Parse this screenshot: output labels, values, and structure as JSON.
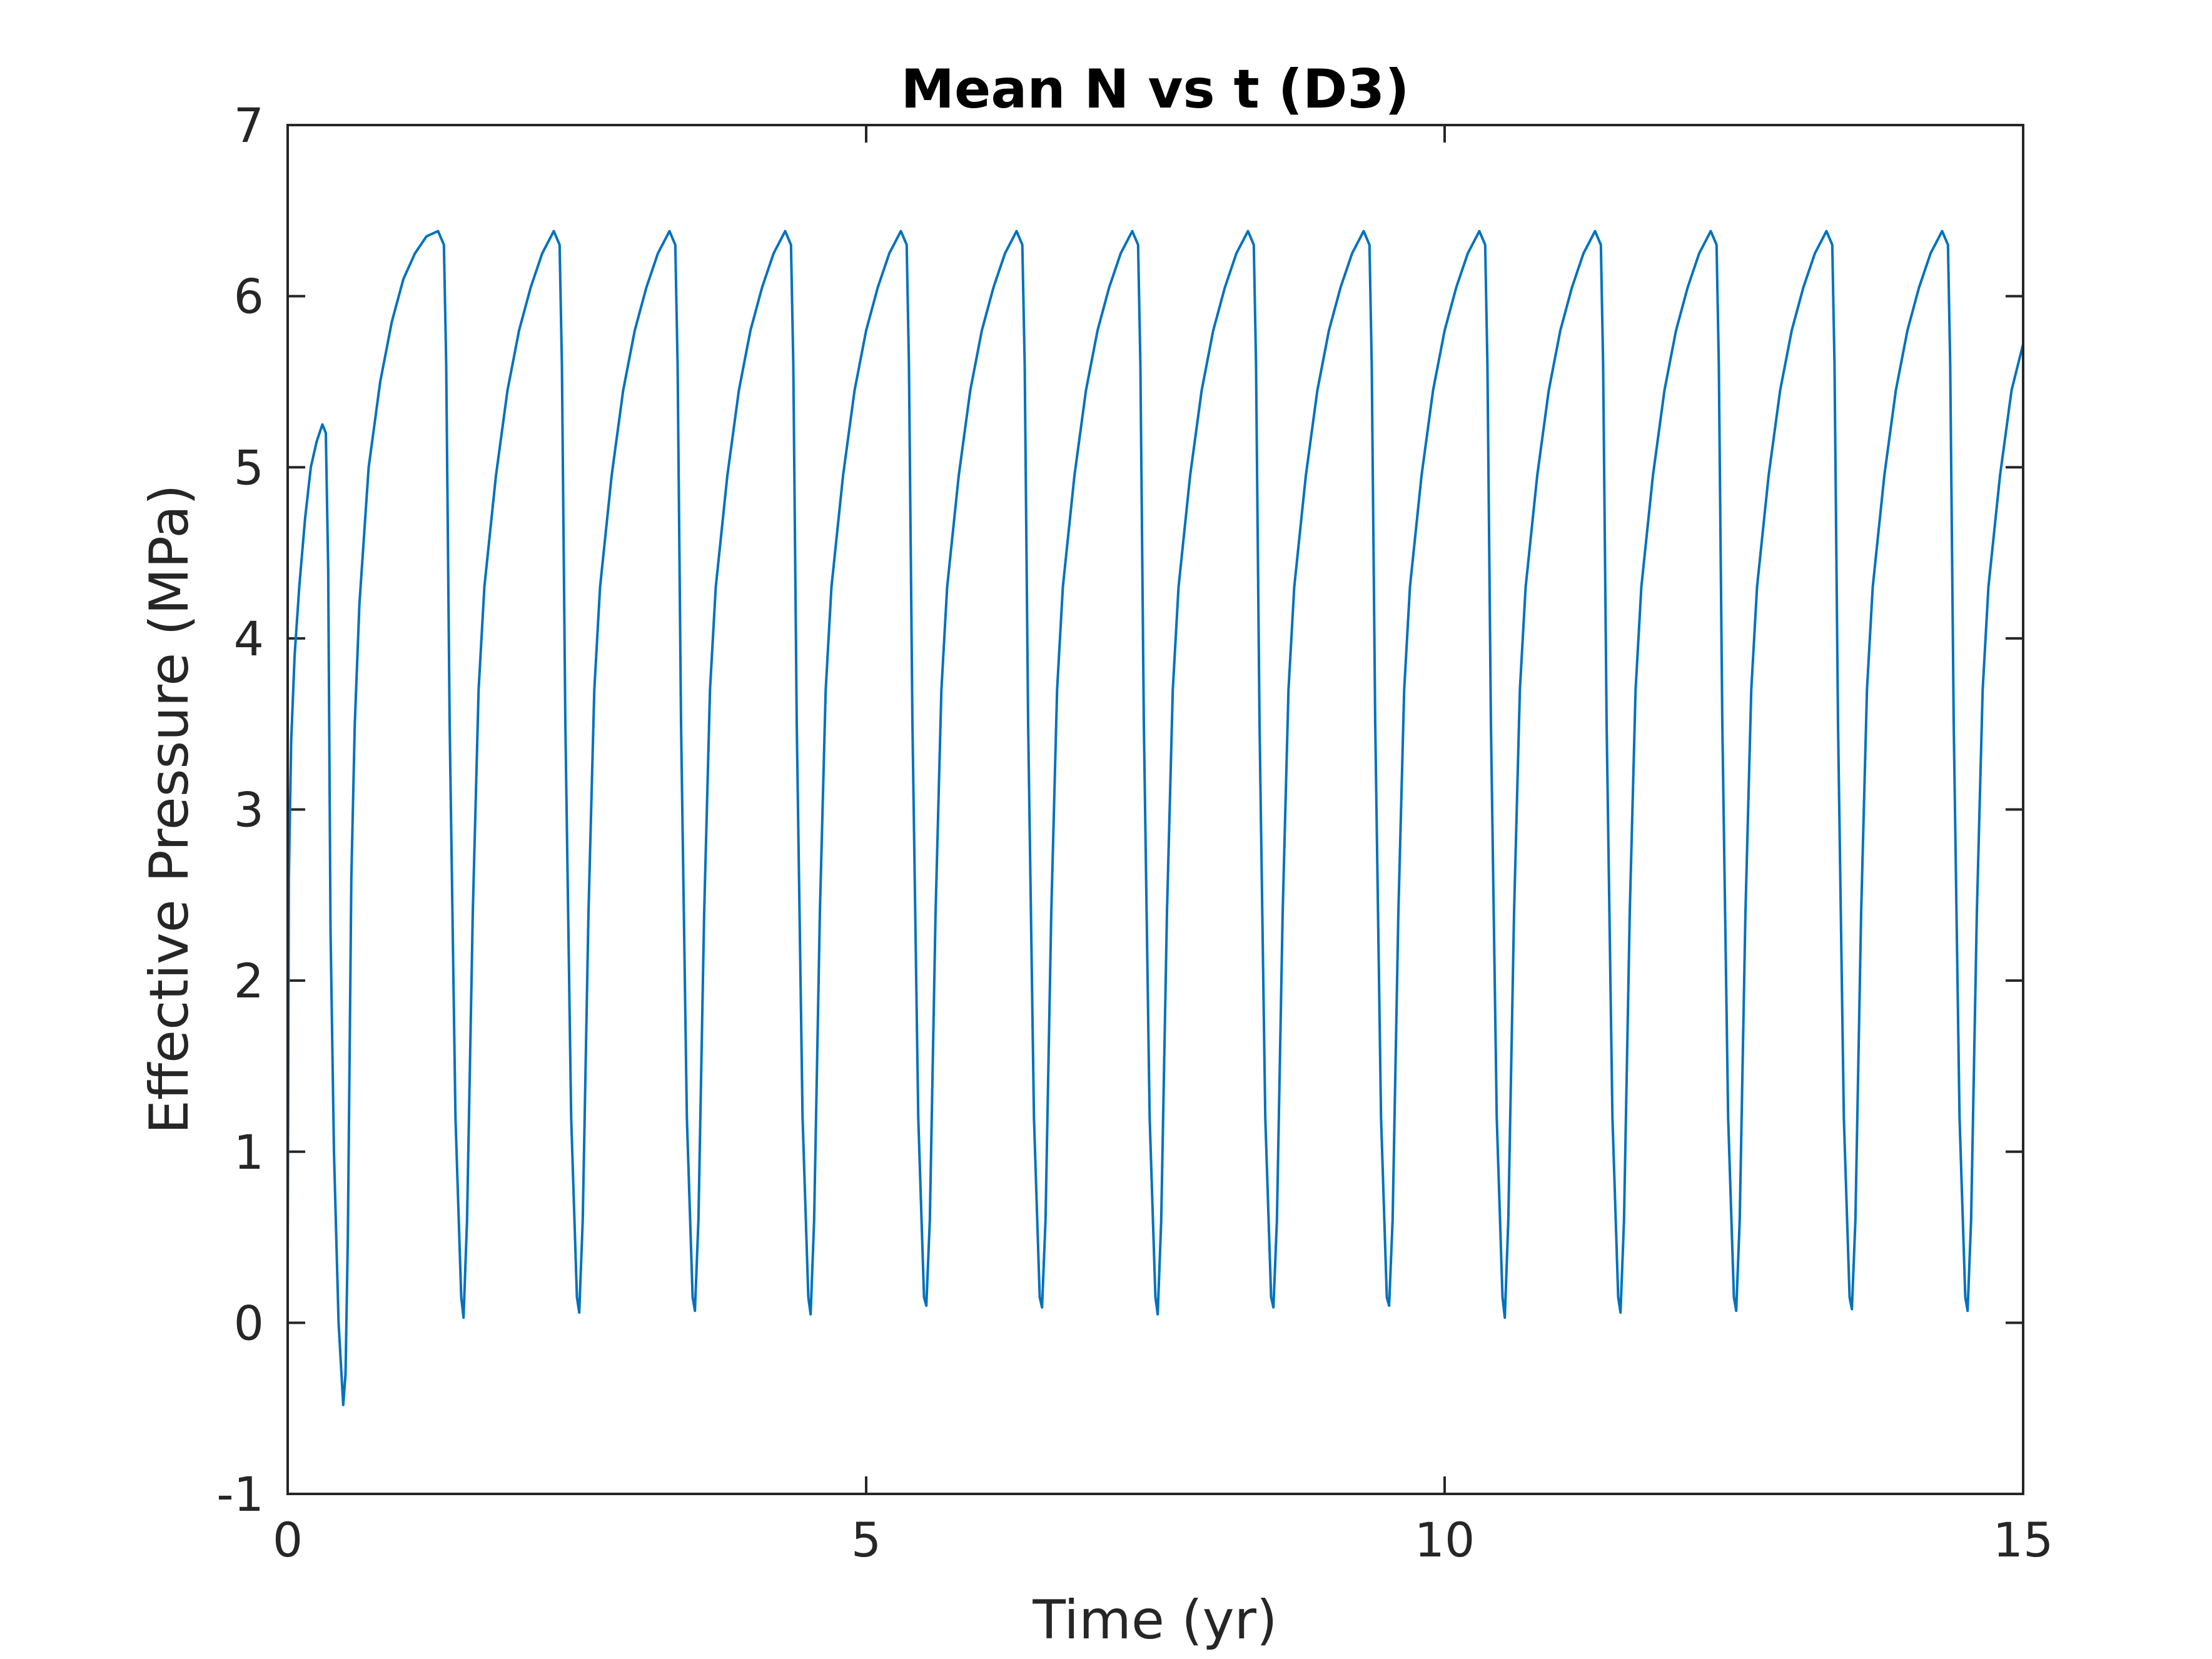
{
  "chart_data": {
    "type": "line",
    "title": "Mean N vs t (D3)",
    "xlabel": "Time (yr)",
    "ylabel": "Effective Pressure (MPa)",
    "xlim": [
      0,
      15
    ],
    "ylim": [
      -1,
      7
    ],
    "xticks": [
      0,
      5,
      10,
      15
    ],
    "xtick_labels": [
      "0",
      "5",
      "10",
      "15"
    ],
    "yticks": [
      -1,
      0,
      1,
      2,
      3,
      4,
      5,
      6,
      7
    ],
    "ytick_labels": [
      "-1",
      "0",
      "1",
      "2",
      "3",
      "4",
      "5",
      "6",
      "7"
    ],
    "grid": false,
    "legend": "none",
    "line_color": "#0072BD",
    "axis_color": "#262626",
    "series": [
      {
        "x": [
          0,
          0.01,
          0.03,
          0.06,
          0.1,
          0.15,
          0.2,
          0.25,
          0.3,
          0.33,
          0.35,
          0.37,
          0.4,
          0.44,
          0.48,
          0.5,
          0.52,
          0.55,
          0.58,
          0.62,
          0.7,
          0.8,
          0.9,
          1.0,
          1.1,
          1.2,
          1.3,
          1.35,
          1.37,
          1.4,
          1.45,
          1.5,
          1.52,
          1.55,
          1.6,
          1.65,
          1.7,
          1.8,
          1.9,
          2.0,
          2.1,
          2.2,
          2.3,
          2.35,
          2.37,
          2.4,
          2.45,
          2.5,
          2.52,
          2.55,
          2.6,
          2.65,
          2.7,
          2.8,
          2.9,
          3.0,
          3.1,
          3.2,
          3.3,
          3.35,
          3.37,
          3.4,
          3.45,
          3.5,
          3.52,
          3.55,
          3.6,
          3.65,
          3.7,
          3.8,
          3.9,
          4.0,
          4.1,
          4.2,
          4.3,
          4.35,
          4.37,
          4.4,
          4.45,
          4.5,
          4.52,
          4.55,
          4.6,
          4.65,
          4.7,
          4.8,
          4.9,
          5.0,
          5.1,
          5.2,
          5.3,
          5.35,
          5.37,
          5.4,
          5.45,
          5.5,
          5.52,
          5.55,
          5.6,
          5.65,
          5.7,
          5.8,
          5.9,
          6.0,
          6.1,
          6.2,
          6.3,
          6.35,
          6.37,
          6.4,
          6.45,
          6.5,
          6.52,
          6.55,
          6.6,
          6.65,
          6.7,
          6.8,
          6.9,
          7.0,
          7.1,
          7.2,
          7.3,
          7.35,
          7.37,
          7.4,
          7.45,
          7.5,
          7.52,
          7.55,
          7.6,
          7.65,
          7.7,
          7.8,
          7.9,
          8.0,
          8.1,
          8.2,
          8.3,
          8.35,
          8.37,
          8.4,
          8.45,
          8.5,
          8.52,
          8.55,
          8.6,
          8.65,
          8.7,
          8.8,
          8.9,
          9.0,
          9.1,
          9.2,
          9.3,
          9.35,
          9.37,
          9.4,
          9.45,
          9.5,
          9.52,
          9.55,
          9.6,
          9.65,
          9.7,
          9.8,
          9.9,
          10.0,
          10.1,
          10.2,
          10.3,
          10.35,
          10.37,
          10.4,
          10.45,
          10.5,
          10.52,
          10.55,
          10.6,
          10.65,
          10.7,
          10.8,
          10.9,
          11.0,
          11.1,
          11.2,
          11.3,
          11.35,
          11.37,
          11.4,
          11.45,
          11.5,
          11.52,
          11.55,
          11.6,
          11.65,
          11.7,
          11.8,
          11.9,
          12.0,
          12.1,
          12.2,
          12.3,
          12.35,
          12.37,
          12.4,
          12.45,
          12.5,
          12.52,
          12.55,
          12.6,
          12.65,
          12.7,
          12.8,
          12.9,
          13.0,
          13.1,
          13.2,
          13.3,
          13.35,
          13.37,
          13.4,
          13.45,
          13.5,
          13.52,
          13.55,
          13.6,
          13.65,
          13.7,
          13.8,
          13.9,
          14.0,
          14.1,
          14.2,
          14.3,
          14.35,
          14.37,
          14.4,
          14.45,
          14.5,
          14.52,
          14.55,
          14.6,
          14.65,
          14.7,
          14.8,
          14.9,
          15.0
        ],
        "y": [
          0.4,
          2.6,
          3.4,
          3.9,
          4.3,
          4.7,
          5.0,
          5.15,
          5.25,
          5.2,
          4.4,
          2.3,
          1.0,
          0.0,
          -0.48,
          -0.3,
          0.5,
          2.6,
          3.5,
          4.2,
          5.0,
          5.5,
          5.85,
          6.1,
          6.25,
          6.35,
          6.38,
          6.3,
          5.6,
          3.5,
          1.2,
          0.15,
          0.03,
          0.6,
          2.4,
          3.7,
          4.3,
          4.95,
          5.45,
          5.8,
          6.05,
          6.25,
          6.38,
          6.3,
          5.6,
          3.5,
          1.2,
          0.15,
          0.06,
          0.6,
          2.4,
          3.7,
          4.3,
          4.95,
          5.45,
          5.8,
          6.05,
          6.25,
          6.38,
          6.3,
          5.6,
          3.5,
          1.2,
          0.15,
          0.07,
          0.6,
          2.4,
          3.7,
          4.3,
          4.95,
          5.45,
          5.8,
          6.05,
          6.25,
          6.38,
          6.3,
          5.6,
          3.5,
          1.2,
          0.15,
          0.05,
          0.6,
          2.4,
          3.7,
          4.3,
          4.95,
          5.45,
          5.8,
          6.05,
          6.25,
          6.38,
          6.3,
          5.6,
          3.5,
          1.2,
          0.15,
          0.1,
          0.6,
          2.4,
          3.7,
          4.3,
          4.95,
          5.45,
          5.8,
          6.05,
          6.25,
          6.38,
          6.3,
          5.6,
          3.5,
          1.2,
          0.15,
          0.09,
          0.6,
          2.4,
          3.7,
          4.3,
          4.95,
          5.45,
          5.8,
          6.05,
          6.25,
          6.38,
          6.3,
          5.6,
          3.5,
          1.2,
          0.15,
          0.05,
          0.6,
          2.4,
          3.7,
          4.3,
          4.95,
          5.45,
          5.8,
          6.05,
          6.25,
          6.38,
          6.3,
          5.6,
          3.5,
          1.2,
          0.15,
          0.09,
          0.6,
          2.4,
          3.7,
          4.3,
          4.95,
          5.45,
          5.8,
          6.05,
          6.25,
          6.38,
          6.3,
          5.6,
          3.5,
          1.2,
          0.15,
          0.1,
          0.6,
          2.4,
          3.7,
          4.3,
          4.95,
          5.45,
          5.8,
          6.05,
          6.25,
          6.38,
          6.3,
          5.6,
          3.5,
          1.2,
          0.15,
          0.03,
          0.6,
          2.4,
          3.7,
          4.3,
          4.95,
          5.45,
          5.8,
          6.05,
          6.25,
          6.38,
          6.3,
          5.6,
          3.5,
          1.2,
          0.15,
          0.06,
          0.6,
          2.4,
          3.7,
          4.3,
          4.95,
          5.45,
          5.8,
          6.05,
          6.25,
          6.38,
          6.3,
          5.6,
          3.5,
          1.2,
          0.15,
          0.07,
          0.6,
          2.4,
          3.7,
          4.3,
          4.95,
          5.45,
          5.8,
          6.05,
          6.25,
          6.38,
          6.3,
          5.6,
          3.5,
          1.2,
          0.15,
          0.08,
          0.6,
          2.4,
          3.7,
          4.3,
          4.95,
          5.45,
          5.8,
          6.05,
          6.25,
          6.38,
          6.3,
          5.6,
          3.5,
          1.2,
          0.15,
          0.07,
          0.6,
          2.4,
          3.7,
          4.3,
          4.95,
          5.45,
          5.72
        ]
      }
    ]
  }
}
